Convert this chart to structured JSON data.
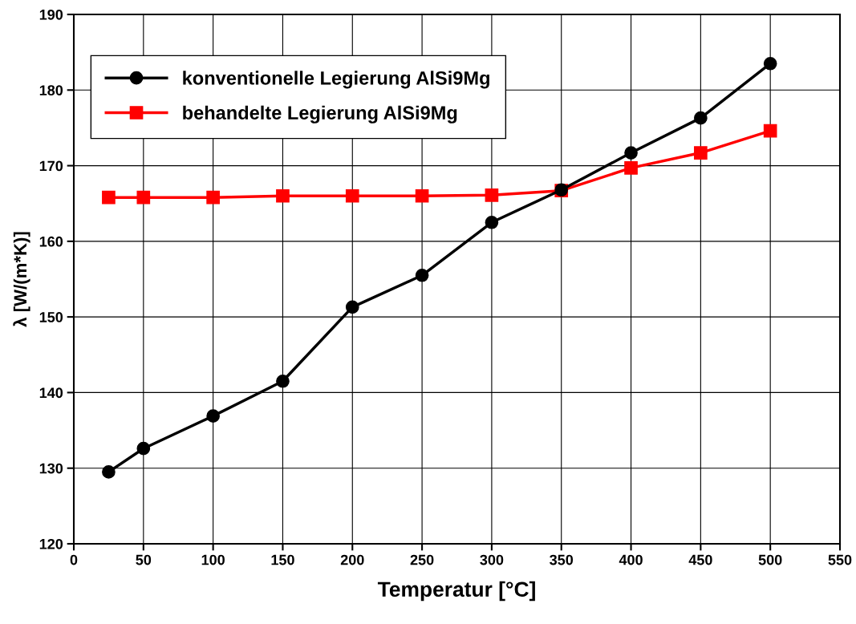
{
  "chart_data": {
    "type": "line",
    "xlabel": "Temperatur [°C]",
    "ylabel": "λ [W/(m*K)]",
    "x": [
      25,
      50,
      100,
      150,
      200,
      250,
      300,
      350,
      400,
      450,
      500
    ],
    "series": [
      {
        "name": "konventionelle Legierung AlSi9Mg",
        "color": "#000000",
        "marker": "circle",
        "values": [
          129.5,
          132.6,
          136.9,
          141.5,
          151.3,
          155.5,
          162.5,
          166.8,
          171.7,
          176.3,
          183.5
        ]
      },
      {
        "name": "behandelte Legierung AlSi9Mg",
        "color": "#ff0000",
        "marker": "square",
        "values": [
          165.8,
          165.8,
          165.8,
          166.0,
          166.0,
          166.0,
          166.1,
          166.7,
          169.7,
          171.7,
          174.6
        ]
      }
    ],
    "xlim": [
      0,
      550
    ],
    "xticks": [
      0,
      50,
      100,
      150,
      200,
      250,
      300,
      350,
      400,
      450,
      500,
      550
    ],
    "ylim": [
      120,
      190
    ],
    "yticks": [
      120,
      130,
      140,
      150,
      160,
      170,
      180,
      190
    ],
    "grid": true,
    "legend": "top left",
    "line_style": "solid"
  }
}
